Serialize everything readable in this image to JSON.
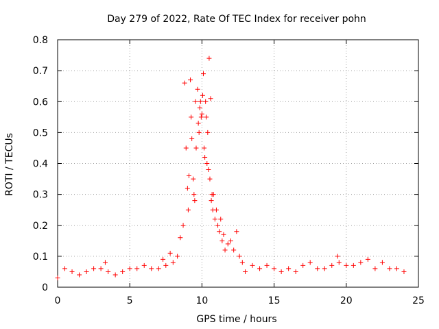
{
  "chart_data": {
    "type": "scatter",
    "title": "Day 279 of 2022, Rate Of TEC Index for receiver pohn",
    "xlabel": "GPS time / hours",
    "ylabel": "ROTI / TECUs",
    "xlim": [
      0,
      25
    ],
    "ylim": [
      0,
      0.8
    ],
    "xticks": [
      0,
      5,
      10,
      15,
      20,
      25
    ],
    "yticks": [
      0,
      0.1,
      0.2,
      0.3,
      0.4,
      0.5,
      0.6,
      0.7,
      0.8
    ],
    "x_tick_labels": [
      "0",
      "5",
      "10",
      "15",
      "20",
      "25"
    ],
    "y_tick_labels": [
      "0",
      "0.1",
      "0.2",
      "0.3",
      "0.4",
      "0.5",
      "0.6",
      "0.7",
      "0.8"
    ],
    "grid": true,
    "marker": "+",
    "series": [
      {
        "name": "ROTI",
        "color": "#ff0000",
        "x": [
          0.0,
          0.5,
          1.0,
          1.5,
          2.0,
          2.5,
          3.0,
          3.3,
          3.5,
          4.0,
          4.5,
          5.0,
          5.5,
          6.0,
          6.5,
          7.0,
          7.3,
          7.5,
          7.8,
          8.0,
          8.3,
          8.5,
          8.7,
          8.8,
          8.9,
          9.0,
          9.05,
          9.1,
          9.2,
          9.25,
          9.3,
          9.4,
          9.45,
          9.5,
          9.55,
          9.6,
          9.7,
          9.75,
          9.8,
          9.85,
          9.9,
          9.95,
          10.0,
          10.05,
          10.1,
          10.15,
          10.2,
          10.25,
          10.3,
          10.35,
          10.4,
          10.45,
          10.5,
          10.55,
          10.6,
          10.65,
          10.7,
          10.75,
          10.8,
          10.9,
          11.0,
          11.1,
          11.2,
          11.3,
          11.4,
          11.5,
          11.6,
          11.8,
          12.0,
          12.2,
          12.4,
          12.6,
          12.8,
          13.0,
          13.5,
          14.0,
          14.5,
          15.0,
          15.5,
          16.0,
          16.5,
          17.0,
          17.5,
          18.0,
          18.5,
          19.0,
          19.4,
          19.5,
          20.0,
          20.5,
          21.0,
          21.5,
          22.0,
          22.5,
          23.0,
          23.5,
          24.0
        ],
        "y": [
          0.03,
          0.06,
          0.05,
          0.04,
          0.05,
          0.06,
          0.06,
          0.08,
          0.05,
          0.04,
          0.05,
          0.06,
          0.06,
          0.07,
          0.06,
          0.06,
          0.09,
          0.07,
          0.11,
          0.08,
          0.1,
          0.16,
          0.2,
          0.66,
          0.45,
          0.32,
          0.25,
          0.36,
          0.67,
          0.55,
          0.48,
          0.35,
          0.3,
          0.28,
          0.6,
          0.45,
          0.64,
          0.53,
          0.5,
          0.58,
          0.6,
          0.55,
          0.56,
          0.62,
          0.69,
          0.45,
          0.42,
          0.6,
          0.55,
          0.4,
          0.5,
          0.38,
          0.74,
          0.35,
          0.61,
          0.28,
          0.3,
          0.25,
          0.3,
          0.22,
          0.25,
          0.2,
          0.18,
          0.22,
          0.15,
          0.17,
          0.12,
          0.14,
          0.15,
          0.12,
          0.18,
          0.1,
          0.08,
          0.05,
          0.07,
          0.06,
          0.07,
          0.06,
          0.05,
          0.06,
          0.05,
          0.07,
          0.08,
          0.06,
          0.06,
          0.07,
          0.1,
          0.08,
          0.07,
          0.07,
          0.08,
          0.09,
          0.06,
          0.08,
          0.06,
          0.06,
          0.05
        ]
      }
    ]
  }
}
